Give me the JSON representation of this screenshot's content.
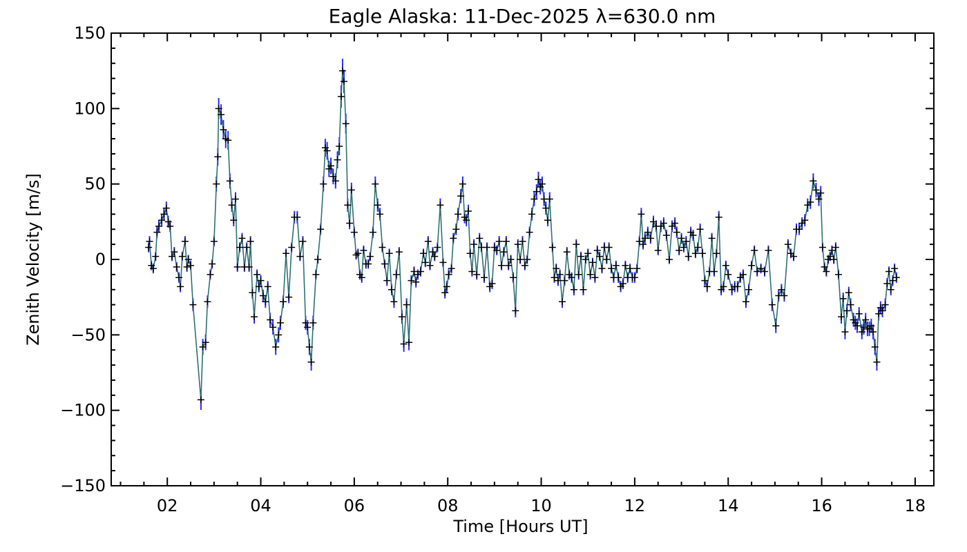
{
  "chart_data": {
    "type": "line",
    "title": "Eagle Alaska: 11-Dec-2025 λ=630.0 nm",
    "xlabel": "Time [Hours UT]",
    "ylabel": "Zenith Velocity [m/s]",
    "xlim": [
      0.8,
      18.4
    ],
    "ylim": [
      -150,
      150
    ],
    "xticks": [
      2,
      4,
      6,
      8,
      10,
      12,
      14,
      16,
      18
    ],
    "xtick_labels": [
      "02",
      "04",
      "06",
      "08",
      "10",
      "12",
      "14",
      "16",
      "18"
    ],
    "yticks": [
      -150,
      -100,
      -50,
      0,
      50,
      100,
      150
    ],
    "ytick_labels": [
      "−150",
      "−100",
      "−50",
      "0",
      "50",
      "100",
      "150"
    ],
    "grid": false,
    "legend": "none",
    "colors": {
      "line": "#2f6f73",
      "error_bar": "#2b2bff",
      "marker": "#000000",
      "axis": "#000000"
    },
    "series": [
      {
        "points": [
          [
            1.6,
            8
          ],
          [
            1.62,
            12
          ],
          [
            1.66,
            -4
          ],
          [
            1.7,
            -6
          ],
          [
            1.75,
            2
          ],
          [
            1.78,
            18
          ],
          [
            1.82,
            22
          ],
          [
            1.88,
            26
          ],
          [
            1.93,
            30
          ],
          [
            1.98,
            34
          ],
          [
            2.02,
            25
          ],
          [
            2.06,
            22
          ],
          [
            2.1,
            2
          ],
          [
            2.15,
            5
          ],
          [
            2.2,
            -5
          ],
          [
            2.25,
            -12
          ],
          [
            2.28,
            -18
          ],
          [
            2.32,
            2
          ],
          [
            2.38,
            12
          ],
          [
            2.42,
            -5
          ],
          [
            2.45,
            0
          ],
          [
            2.5,
            -4
          ],
          [
            2.55,
            -30
          ],
          [
            2.72,
            -93
          ],
          [
            2.76,
            -58
          ],
          [
            2.82,
            -55
          ],
          [
            2.86,
            -28
          ],
          [
            2.92,
            -10
          ],
          [
            2.96,
            -3
          ],
          [
            3.0,
            12
          ],
          [
            3.05,
            50
          ],
          [
            3.08,
            68
          ],
          [
            3.1,
            100
          ],
          [
            3.15,
            96
          ],
          [
            3.2,
            86
          ],
          [
            3.25,
            80
          ],
          [
            3.3,
            79
          ],
          [
            3.34,
            52
          ],
          [
            3.38,
            36
          ],
          [
            3.42,
            26
          ],
          [
            3.46,
            40
          ],
          [
            3.5,
            -5
          ],
          [
            3.55,
            8
          ],
          [
            3.6,
            14
          ],
          [
            3.65,
            -5
          ],
          [
            3.7,
            8
          ],
          [
            3.75,
            -5
          ],
          [
            3.78,
            12
          ],
          [
            3.82,
            -22
          ],
          [
            3.86,
            -38
          ],
          [
            3.92,
            -10
          ],
          [
            3.96,
            -18
          ],
          [
            4.0,
            -14
          ],
          [
            4.05,
            -24
          ],
          [
            4.1,
            -28
          ],
          [
            4.15,
            -18
          ],
          [
            4.2,
            -40
          ],
          [
            4.26,
            -45
          ],
          [
            4.32,
            -58
          ],
          [
            4.38,
            -50
          ],
          [
            4.42,
            -42
          ],
          [
            4.48,
            -28
          ],
          [
            4.54,
            4
          ],
          [
            4.6,
            -25
          ],
          [
            4.66,
            8
          ],
          [
            4.72,
            28
          ],
          [
            4.78,
            28
          ],
          [
            4.84,
            2
          ],
          [
            4.9,
            12
          ],
          [
            4.96,
            -42
          ],
          [
            5.0,
            -45
          ],
          [
            5.04,
            -58
          ],
          [
            5.08,
            -68
          ],
          [
            5.12,
            -42
          ],
          [
            5.18,
            -10
          ],
          [
            5.22,
            0
          ],
          [
            5.28,
            20
          ],
          [
            5.34,
            50
          ],
          [
            5.38,
            74
          ],
          [
            5.42,
            72
          ],
          [
            5.46,
            60
          ],
          [
            5.5,
            62
          ],
          [
            5.55,
            55
          ],
          [
            5.6,
            52
          ],
          [
            5.64,
            66
          ],
          [
            5.68,
            75
          ],
          [
            5.72,
            108
          ],
          [
            5.75,
            125
          ],
          [
            5.78,
            118
          ],
          [
            5.82,
            90
          ],
          [
            5.86,
            36
          ],
          [
            5.9,
            24
          ],
          [
            5.94,
            46
          ],
          [
            6.0,
            18
          ],
          [
            6.04,
            3
          ],
          [
            6.08,
            4
          ],
          [
            6.12,
            -10
          ],
          [
            6.16,
            -12
          ],
          [
            6.2,
            6
          ],
          [
            6.25,
            -3
          ],
          [
            6.3,
            -3
          ],
          [
            6.34,
            2
          ],
          [
            6.4,
            18
          ],
          [
            6.45,
            50
          ],
          [
            6.5,
            36
          ],
          [
            6.55,
            30
          ],
          [
            6.6,
            8
          ],
          [
            6.65,
            -3
          ],
          [
            6.7,
            -14
          ],
          [
            6.75,
            4
          ],
          [
            6.8,
            -20
          ],
          [
            6.85,
            -28
          ],
          [
            6.9,
            -10
          ],
          [
            6.96,
            5
          ],
          [
            7.02,
            -38
          ],
          [
            7.06,
            -56
          ],
          [
            7.12,
            -30
          ],
          [
            7.17,
            -55
          ],
          [
            7.22,
            -14
          ],
          [
            7.28,
            -8
          ],
          [
            7.32,
            -15
          ],
          [
            7.36,
            -10
          ],
          [
            7.42,
            -8
          ],
          [
            7.48,
            4
          ],
          [
            7.52,
            -2
          ],
          [
            7.58,
            12
          ],
          [
            7.62,
            -4
          ],
          [
            7.68,
            5
          ],
          [
            7.72,
            2
          ],
          [
            7.78,
            8
          ],
          [
            7.84,
            36
          ],
          [
            7.9,
            -2
          ],
          [
            7.94,
            -22
          ],
          [
            7.98,
            -18
          ],
          [
            8.02,
            -10
          ],
          [
            8.08,
            -6
          ],
          [
            8.12,
            14
          ],
          [
            8.18,
            20
          ],
          [
            8.22,
            30
          ],
          [
            8.28,
            42
          ],
          [
            8.32,
            50
          ],
          [
            8.36,
            28
          ],
          [
            8.4,
            26
          ],
          [
            8.44,
            32
          ],
          [
            8.48,
            4
          ],
          [
            8.52,
            -8
          ],
          [
            8.56,
            10
          ],
          [
            8.62,
            -10
          ],
          [
            8.68,
            14
          ],
          [
            8.72,
            8
          ],
          [
            8.78,
            -12
          ],
          [
            8.84,
            8
          ],
          [
            8.9,
            -18
          ],
          [
            8.95,
            -16
          ],
          [
            9.0,
            8
          ],
          [
            9.05,
            6
          ],
          [
            9.1,
            12
          ],
          [
            9.15,
            -4
          ],
          [
            9.2,
            5
          ],
          [
            9.25,
            12
          ],
          [
            9.3,
            -4
          ],
          [
            9.35,
            0
          ],
          [
            9.4,
            -12
          ],
          [
            9.45,
            -34
          ],
          [
            9.5,
            10
          ],
          [
            9.55,
            0
          ],
          [
            9.6,
            12
          ],
          [
            9.65,
            -4
          ],
          [
            9.7,
            0
          ],
          [
            9.75,
            18
          ],
          [
            9.8,
            30
          ],
          [
            9.85,
            40
          ],
          [
            9.9,
            45
          ],
          [
            9.94,
            53
          ],
          [
            9.98,
            48
          ],
          [
            10.02,
            50
          ],
          [
            10.06,
            40
          ],
          [
            10.1,
            34
          ],
          [
            10.14,
            26
          ],
          [
            10.18,
            40
          ],
          [
            10.24,
            8
          ],
          [
            10.28,
            -12
          ],
          [
            10.32,
            -6
          ],
          [
            10.36,
            -14
          ],
          [
            10.4,
            -10
          ],
          [
            10.45,
            -28
          ],
          [
            10.5,
            -14
          ],
          [
            10.55,
            5
          ],
          [
            10.6,
            -10
          ],
          [
            10.65,
            -12
          ],
          [
            10.7,
            -20
          ],
          [
            10.75,
            10
          ],
          [
            10.8,
            -10
          ],
          [
            10.85,
            2
          ],
          [
            10.9,
            -20
          ],
          [
            10.95,
            0
          ],
          [
            11.0,
            4
          ],
          [
            11.05,
            -10
          ],
          [
            11.1,
            -2
          ],
          [
            11.15,
            -12
          ],
          [
            11.2,
            6
          ],
          [
            11.25,
            2
          ],
          [
            11.3,
            -6
          ],
          [
            11.35,
            8
          ],
          [
            11.4,
            0
          ],
          [
            11.45,
            8
          ],
          [
            11.5,
            -6
          ],
          [
            11.55,
            -12
          ],
          [
            11.6,
            -4
          ],
          [
            11.65,
            -12
          ],
          [
            11.7,
            -18
          ],
          [
            11.75,
            -16
          ],
          [
            11.8,
            -4
          ],
          [
            11.85,
            -12
          ],
          [
            11.9,
            -6
          ],
          [
            11.95,
            -12
          ],
          [
            12.0,
            -12
          ],
          [
            12.05,
            -6
          ],
          [
            12.1,
            12
          ],
          [
            12.14,
            30
          ],
          [
            12.18,
            10
          ],
          [
            12.22,
            14
          ],
          [
            12.28,
            18
          ],
          [
            12.34,
            14
          ],
          [
            12.4,
            25
          ],
          [
            12.46,
            22
          ],
          [
            12.5,
            6
          ],
          [
            12.56,
            22
          ],
          [
            12.62,
            24
          ],
          [
            12.68,
            16
          ],
          [
            12.74,
            0
          ],
          [
            12.8,
            22
          ],
          [
            12.86,
            24
          ],
          [
            12.9,
            18
          ],
          [
            12.95,
            6
          ],
          [
            13.0,
            14
          ],
          [
            13.05,
            8
          ],
          [
            13.1,
            12
          ],
          [
            13.15,
            2
          ],
          [
            13.2,
            18
          ],
          [
            13.25,
            16
          ],
          [
            13.3,
            4
          ],
          [
            13.35,
            8
          ],
          [
            13.4,
            20
          ],
          [
            13.45,
            4
          ],
          [
            13.5,
            -14
          ],
          [
            13.55,
            -18
          ],
          [
            13.6,
            -8
          ],
          [
            13.65,
            14
          ],
          [
            13.7,
            -8
          ],
          [
            13.75,
            4
          ],
          [
            13.8,
            28
          ],
          [
            13.85,
            -20
          ],
          [
            13.9,
            -18
          ],
          [
            13.95,
            -4
          ],
          [
            14.0,
            -10
          ],
          [
            14.08,
            -20
          ],
          [
            14.14,
            -18
          ],
          [
            14.2,
            -18
          ],
          [
            14.26,
            -12
          ],
          [
            14.32,
            -10
          ],
          [
            14.38,
            -28
          ],
          [
            14.44,
            -20
          ],
          [
            14.5,
            -4
          ],
          [
            14.56,
            6
          ],
          [
            14.62,
            -8
          ],
          [
            14.7,
            -6
          ],
          [
            14.78,
            -8
          ],
          [
            14.86,
            6
          ],
          [
            14.94,
            -30
          ],
          [
            15.02,
            -44
          ],
          [
            15.08,
            -24
          ],
          [
            15.14,
            -20
          ],
          [
            15.2,
            -24
          ],
          [
            15.28,
            10
          ],
          [
            15.34,
            4
          ],
          [
            15.4,
            2
          ],
          [
            15.46,
            20
          ],
          [
            15.52,
            20
          ],
          [
            15.58,
            24
          ],
          [
            15.64,
            26
          ],
          [
            15.7,
            36
          ],
          [
            15.76,
            38
          ],
          [
            15.82,
            52
          ],
          [
            15.88,
            46
          ],
          [
            15.94,
            40
          ],
          [
            15.98,
            44
          ],
          [
            16.02,
            8
          ],
          [
            16.06,
            -5
          ],
          [
            16.1,
            -8
          ],
          [
            16.14,
            0
          ],
          [
            16.18,
            2
          ],
          [
            16.22,
            6
          ],
          [
            16.26,
            0
          ],
          [
            16.3,
            8
          ],
          [
            16.36,
            -10
          ],
          [
            16.42,
            -38
          ],
          [
            16.46,
            -26
          ],
          [
            16.5,
            -48
          ],
          [
            16.54,
            -34
          ],
          [
            16.58,
            -22
          ],
          [
            16.62,
            -30
          ],
          [
            16.68,
            -40
          ],
          [
            16.72,
            -42
          ],
          [
            16.76,
            -44
          ],
          [
            16.8,
            -36
          ],
          [
            16.86,
            -48
          ],
          [
            16.9,
            -45
          ],
          [
            16.94,
            -40
          ],
          [
            16.98,
            -46
          ],
          [
            17.02,
            -46
          ],
          [
            17.06,
            -44
          ],
          [
            17.1,
            -48
          ],
          [
            17.14,
            -58
          ],
          [
            17.18,
            -68
          ],
          [
            17.22,
            -36
          ],
          [
            17.26,
            -32
          ],
          [
            17.3,
            -34
          ],
          [
            17.36,
            -30
          ],
          [
            17.4,
            -16
          ],
          [
            17.44,
            -8
          ],
          [
            17.48,
            -20
          ],
          [
            17.52,
            -14
          ],
          [
            17.56,
            -6
          ],
          [
            17.6,
            -12
          ]
        ]
      }
    ]
  }
}
